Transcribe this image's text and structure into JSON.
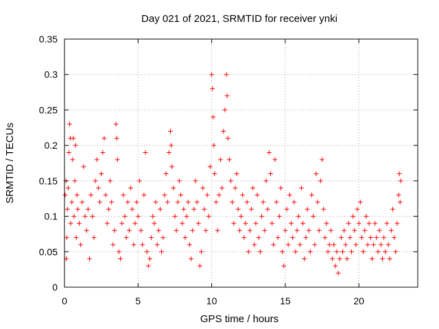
{
  "chart_data": {
    "type": "scatter",
    "title": "Day 021 of 2021, SRMTID for receiver ynki",
    "xlabel": "GPS time / hours",
    "ylabel": "SRMTID / TECUs",
    "xlim": [
      0,
      24
    ],
    "ylim": [
      0,
      0.35
    ],
    "xticks": [
      0,
      5,
      10,
      15,
      20
    ],
    "xtick_labels": [
      "0",
      "5",
      "10",
      "15",
      "20"
    ],
    "yticks": [
      0,
      0.05,
      0.1,
      0.15,
      0.2,
      0.25,
      0.3,
      0.35
    ],
    "ytick_labels": [
      "0",
      "0.05",
      "0.1",
      "0.15",
      "0.2",
      "0.25",
      "0.3",
      "0.35"
    ],
    "grid": true,
    "marker": "plus",
    "series_color": "#ff0000",
    "series": [
      {
        "name": "SRMTID",
        "points": [
          [
            0.05,
            0.13
          ],
          [
            0.1,
            0.15
          ],
          [
            0.12,
            0.04
          ],
          [
            0.15,
            0.07
          ],
          [
            0.2,
            0.11
          ],
          [
            0.25,
            0.14
          ],
          [
            0.3,
            0.19
          ],
          [
            0.35,
            0.23
          ],
          [
            0.4,
            0.21
          ],
          [
            0.42,
            0.09
          ],
          [
            0.5,
            0.12
          ],
          [
            0.55,
            0.18
          ],
          [
            0.6,
            0.21
          ],
          [
            0.65,
            0.1
          ],
          [
            0.7,
            0.15
          ],
          [
            0.75,
            0.2
          ],
          [
            0.8,
            0.07
          ],
          [
            0.85,
            0.13
          ],
          [
            0.9,
            0.11
          ],
          [
            1.0,
            0.09
          ],
          [
            1.1,
            0.06
          ],
          [
            1.2,
            0.12
          ],
          [
            1.3,
            0.17
          ],
          [
            1.4,
            0.1
          ],
          [
            1.5,
            0.08
          ],
          [
            1.6,
            0.11
          ],
          [
            1.7,
            0.04
          ],
          [
            1.8,
            0.13
          ],
          [
            1.9,
            0.1
          ],
          [
            2.0,
            0.07
          ],
          [
            2.1,
            0.15
          ],
          [
            2.2,
            0.18
          ],
          [
            2.3,
            0.14
          ],
          [
            2.4,
            0.12
          ],
          [
            2.5,
            0.16
          ],
          [
            2.6,
            0.19
          ],
          [
            2.7,
            0.21
          ],
          [
            2.8,
            0.13
          ],
          [
            2.9,
            0.09
          ],
          [
            3.0,
            0.11
          ],
          [
            3.1,
            0.15
          ],
          [
            3.2,
            0.12
          ],
          [
            3.3,
            0.06
          ],
          [
            3.4,
            0.08
          ],
          [
            3.5,
            0.23
          ],
          [
            3.55,
            0.21
          ],
          [
            3.6,
            0.18
          ],
          [
            3.7,
            0.05
          ],
          [
            3.8,
            0.04
          ],
          [
            3.9,
            0.09
          ],
          [
            4.0,
            0.13
          ],
          [
            4.1,
            0.1
          ],
          [
            4.2,
            0.07
          ],
          [
            4.3,
            0.12
          ],
          [
            4.4,
            0.08
          ],
          [
            4.5,
            0.14
          ],
          [
            4.6,
            0.11
          ],
          [
            4.7,
            0.06
          ],
          [
            4.8,
            0.09
          ],
          [
            4.9,
            0.12
          ],
          [
            5.0,
            0.1
          ],
          [
            5.1,
            0.15
          ],
          [
            5.2,
            0.08
          ],
          [
            5.3,
            0.06
          ],
          [
            5.4,
            0.13
          ],
          [
            5.5,
            0.19
          ],
          [
            5.6,
            0.05
          ],
          [
            5.7,
            0.03
          ],
          [
            5.8,
            0.04
          ],
          [
            5.9,
            0.07
          ],
          [
            6.0,
            0.1
          ],
          [
            6.1,
            0.09
          ],
          [
            6.2,
            0.12
          ],
          [
            6.3,
            0.06
          ],
          [
            6.4,
            0.08
          ],
          [
            6.5,
            0.11
          ],
          [
            6.6,
            0.05
          ],
          [
            6.7,
            0.07
          ],
          [
            6.8,
            0.13
          ],
          [
            6.9,
            0.16
          ],
          [
            7.0,
            0.12
          ],
          [
            7.1,
            0.19
          ],
          [
            7.2,
            0.22
          ],
          [
            7.25,
            0.2
          ],
          [
            7.3,
            0.17
          ],
          [
            7.4,
            0.14
          ],
          [
            7.5,
            0.1
          ],
          [
            7.6,
            0.08
          ],
          [
            7.7,
            0.12
          ],
          [
            7.8,
            0.15
          ],
          [
            7.9,
            0.13
          ],
          [
            8.0,
            0.09
          ],
          [
            8.1,
            0.11
          ],
          [
            8.2,
            0.07
          ],
          [
            8.3,
            0.1
          ],
          [
            8.4,
            0.12
          ],
          [
            8.5,
            0.06
          ],
          [
            8.6,
            0.04
          ],
          [
            8.7,
            0.08
          ],
          [
            8.8,
            0.11
          ],
          [
            8.9,
            0.15
          ],
          [
            9.0,
            0.12
          ],
          [
            9.1,
            0.09
          ],
          [
            9.2,
            0.03
          ],
          [
            9.3,
            0.05
          ],
          [
            9.4,
            0.14
          ],
          [
            9.5,
            0.11
          ],
          [
            9.6,
            0.08
          ],
          [
            9.7,
            0.13
          ],
          [
            9.8,
            0.1
          ],
          [
            9.9,
            0.17
          ],
          [
            10.0,
            0.3
          ],
          [
            10.05,
            0.28
          ],
          [
            10.1,
            0.24
          ],
          [
            10.15,
            0.2
          ],
          [
            10.2,
            0.16
          ],
          [
            10.3,
            0.12
          ],
          [
            10.4,
            0.08
          ],
          [
            10.5,
            0.13
          ],
          [
            10.6,
            0.18
          ],
          [
            10.7,
            0.14
          ],
          [
            10.8,
            0.22
          ],
          [
            10.9,
            0.25
          ],
          [
            11.0,
            0.3
          ],
          [
            11.05,
            0.27
          ],
          [
            11.1,
            0.21
          ],
          [
            11.2,
            0.18
          ],
          [
            11.3,
            0.15
          ],
          [
            11.4,
            0.12
          ],
          [
            11.5,
            0.09
          ],
          [
            11.6,
            0.14
          ],
          [
            11.7,
            0.16
          ],
          [
            11.8,
            0.11
          ],
          [
            11.9,
            0.08
          ],
          [
            12.0,
            0.1
          ],
          [
            12.1,
            0.13
          ],
          [
            12.2,
            0.07
          ],
          [
            12.3,
            0.09
          ],
          [
            12.4,
            0.12
          ],
          [
            12.5,
            0.05
          ],
          [
            12.6,
            0.08
          ],
          [
            12.7,
            0.11
          ],
          [
            12.8,
            0.14
          ],
          [
            12.9,
            0.06
          ],
          [
            13.0,
            0.09
          ],
          [
            13.1,
            0.13
          ],
          [
            13.2,
            0.07
          ],
          [
            13.3,
            0.05
          ],
          [
            13.4,
            0.1
          ],
          [
            13.5,
            0.12
          ],
          [
            13.6,
            0.08
          ],
          [
            13.7,
            0.15
          ],
          [
            13.8,
            0.11
          ],
          [
            13.9,
            0.19
          ],
          [
            14.0,
            0.16
          ],
          [
            14.1,
            0.09
          ],
          [
            14.2,
            0.06
          ],
          [
            14.3,
            0.18
          ],
          [
            14.4,
            0.12
          ],
          [
            14.5,
            0.07
          ],
          [
            14.6,
            0.1
          ],
          [
            14.7,
            0.14
          ],
          [
            14.8,
            0.05
          ],
          [
            14.9,
            0.03
          ],
          [
            15.0,
            0.08
          ],
          [
            15.1,
            0.11
          ],
          [
            15.2,
            0.06
          ],
          [
            15.3,
            0.13
          ],
          [
            15.4,
            0.09
          ],
          [
            15.5,
            0.07
          ],
          [
            15.6,
            0.12
          ],
          [
            15.7,
            0.05
          ],
          [
            15.8,
            0.08
          ],
          [
            15.9,
            0.1
          ],
          [
            16.0,
            0.06
          ],
          [
            16.1,
            0.14
          ],
          [
            16.2,
            0.09
          ],
          [
            16.3,
            0.04
          ],
          [
            16.4,
            0.07
          ],
          [
            16.5,
            0.11
          ],
          [
            16.6,
            0.08
          ],
          [
            16.7,
            0.05
          ],
          [
            16.8,
            0.13
          ],
          [
            16.9,
            0.1
          ],
          [
            17.0,
            0.06
          ],
          [
            17.1,
            0.16
          ],
          [
            17.2,
            0.12
          ],
          [
            17.3,
            0.08
          ],
          [
            17.4,
            0.15
          ],
          [
            17.5,
            0.18
          ],
          [
            17.6,
            0.11
          ],
          [
            17.7,
            0.07
          ],
          [
            17.8,
            0.09
          ],
          [
            17.9,
            0.05
          ],
          [
            18.0,
            0.06
          ],
          [
            18.1,
            0.08
          ],
          [
            18.2,
            0.04
          ],
          [
            18.3,
            0.06
          ],
          [
            18.4,
            0.03
          ],
          [
            18.5,
            0.05
          ],
          [
            18.6,
            0.02
          ],
          [
            18.7,
            0.04
          ],
          [
            18.8,
            0.07
          ],
          [
            18.9,
            0.05
          ],
          [
            19.0,
            0.08
          ],
          [
            19.1,
            0.06
          ],
          [
            19.2,
            0.04
          ],
          [
            19.3,
            0.09
          ],
          [
            19.4,
            0.07
          ],
          [
            19.5,
            0.05
          ],
          [
            19.6,
            0.1
          ],
          [
            19.7,
            0.08
          ],
          [
            19.8,
            0.06
          ],
          [
            19.9,
            0.11
          ],
          [
            20.0,
            0.09
          ],
          [
            20.1,
            0.12
          ],
          [
            20.2,
            0.07
          ],
          [
            20.3,
            0.05
          ],
          [
            20.4,
            0.08
          ],
          [
            20.5,
            0.1
          ],
          [
            20.6,
            0.06
          ],
          [
            20.7,
            0.09
          ],
          [
            20.8,
            0.07
          ],
          [
            20.9,
            0.04
          ],
          [
            21.0,
            0.06
          ],
          [
            21.1,
            0.09
          ],
          [
            21.2,
            0.07
          ],
          [
            21.3,
            0.05
          ],
          [
            21.4,
            0.08
          ],
          [
            21.5,
            0.06
          ],
          [
            21.6,
            0.04
          ],
          [
            21.7,
            0.07
          ],
          [
            21.8,
            0.05
          ],
          [
            21.9,
            0.09
          ],
          [
            22.0,
            0.06
          ],
          [
            22.1,
            0.04
          ],
          [
            22.2,
            0.08
          ],
          [
            22.3,
            0.11
          ],
          [
            22.4,
            0.07
          ],
          [
            22.5,
            0.05
          ],
          [
            22.6,
            0.09
          ],
          [
            22.7,
            0.13
          ],
          [
            22.75,
            0.16
          ],
          [
            22.8,
            0.12
          ],
          [
            22.85,
            0.15
          ]
        ]
      }
    ]
  }
}
